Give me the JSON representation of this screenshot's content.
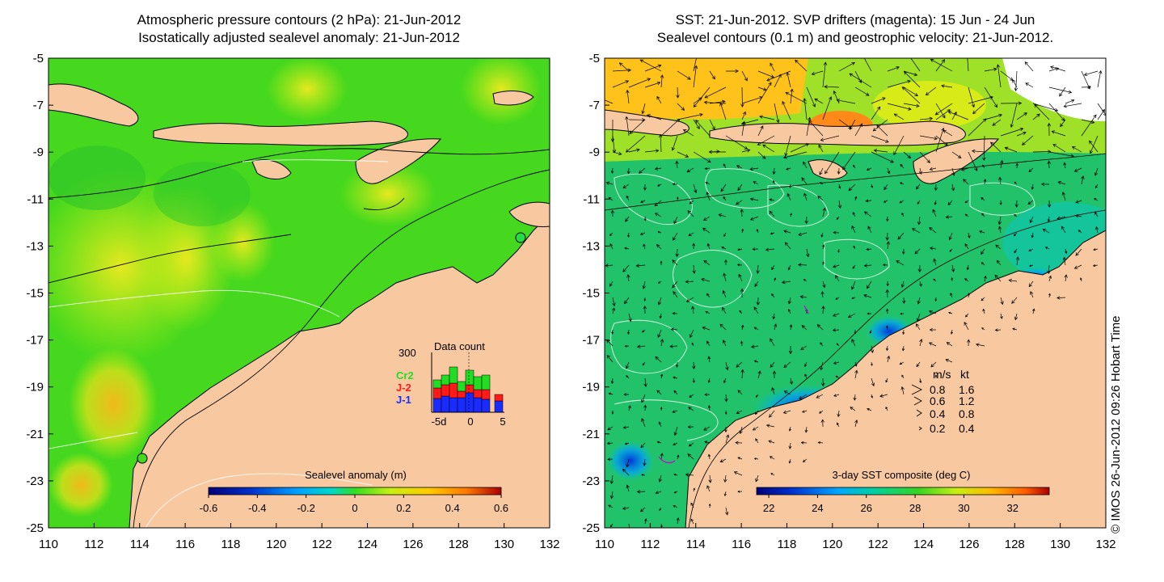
{
  "left_panel": {
    "title_line1": "Atmospheric pressure contours (2 hPa): 21-Jun-2012",
    "title_line2": "Isostatically adjusted sealevel anomaly: 21-Jun-2012",
    "colorbar": {
      "label": "Sealevel anomaly (m)",
      "ticks": [
        "-0.6",
        "-0.4",
        "-0.2",
        "0",
        "0.2",
        "0.4",
        "0.6"
      ],
      "range": [
        -0.6,
        0.6
      ]
    },
    "data_count": {
      "title": "Data count",
      "ymax_label": "300",
      "legend": [
        {
          "label": "Cr2",
          "color": "#22dd22"
        },
        {
          "label": "J-2",
          "color": "#ff1a1a"
        },
        {
          "label": "J-1",
          "color": "#1a2bff"
        }
      ],
      "x_ticks": [
        "-5d",
        "0",
        "5"
      ]
    }
  },
  "right_panel": {
    "title_line1": "SST: 21-Jun-2012. SVP drifters (magenta): 15 Jun - 24 Jun",
    "title_line2": "Sealevel contours (0.1 m) and geostrophic velocity: 21-Jun-2012.",
    "colorbar": {
      "label": "3-day SST composite (deg C)",
      "ticks": [
        "22",
        "24",
        "26",
        "28",
        "30",
        "32"
      ],
      "range": [
        21.5,
        33.5
      ]
    },
    "velocity_legend": {
      "header_ms": "m/s",
      "header_kt": "kt",
      "rows": [
        {
          "ms": "0.8",
          "kt": "1.6"
        },
        {
          "ms": "0.6",
          "kt": "1.2"
        },
        {
          "ms": "0.4",
          "kt": "0.8"
        },
        {
          "ms": "0.2",
          "kt": "0.4"
        }
      ]
    }
  },
  "axes": {
    "x_ticks": [
      "110",
      "112",
      "114",
      "116",
      "118",
      "120",
      "122",
      "124",
      "126",
      "128",
      "130",
      "132"
    ],
    "y_ticks": [
      "-5",
      "-7",
      "-9",
      "-11",
      "-13",
      "-15",
      "-17",
      "-19",
      "-21",
      "-23",
      "-25"
    ]
  },
  "credit": "© IMOS 26-Jun-2012 09:26 Hobart Time",
  "colors": {
    "land": "#f8c9a1",
    "ocean_left": "#45d81e",
    "ocean_right": "#22c26a"
  }
}
